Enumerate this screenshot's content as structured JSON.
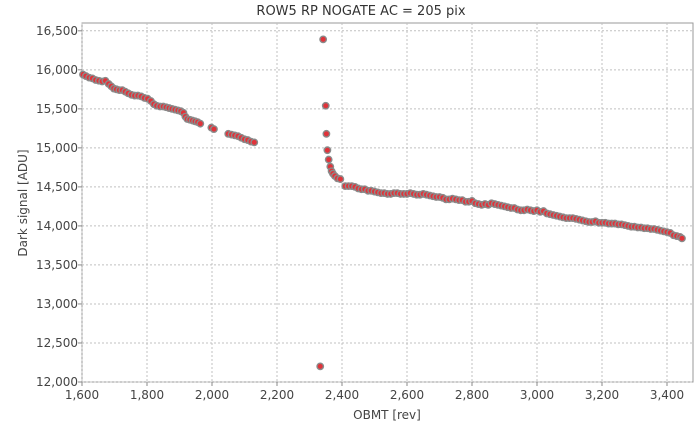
{
  "chart_data": {
    "type": "scatter",
    "title": "ROW5 RP NOGATE AC = 205 pix",
    "xlabel": "OBMT [rev]",
    "ylabel": "Dark signal [ADU]",
    "xlim": [
      1600,
      3480
    ],
    "ylim": [
      12000,
      16600
    ],
    "x_ticks": [
      1600,
      1800,
      2000,
      2200,
      2400,
      2600,
      2800,
      3000,
      3200,
      3400
    ],
    "x_tick_labels": [
      "1,600",
      "1,800",
      "2,000",
      "2,200",
      "2,400",
      "2,600",
      "2,800",
      "3,000",
      "3,200",
      "3,400"
    ],
    "y_ticks": [
      12000,
      12500,
      13000,
      13500,
      14000,
      14500,
      15000,
      15500,
      16000,
      16500
    ],
    "y_tick_labels": [
      "12,000",
      "12,500",
      "13,000",
      "13,500",
      "14,000",
      "14,500",
      "15,000",
      "15,500",
      "16,000",
      "16,500"
    ],
    "grid": true,
    "marker_fill": "#e0333a",
    "marker_edge": "#8a8a8a",
    "points": [
      [
        1603,
        15940
      ],
      [
        1612,
        15920
      ],
      [
        1622,
        15900
      ],
      [
        1632,
        15890
      ],
      [
        1642,
        15870
      ],
      [
        1652,
        15860
      ],
      [
        1662,
        15850
      ],
      [
        1672,
        15860
      ],
      [
        1682,
        15820
      ],
      [
        1690,
        15790
      ],
      [
        1698,
        15760
      ],
      [
        1706,
        15750
      ],
      [
        1715,
        15740
      ],
      [
        1724,
        15740
      ],
      [
        1733,
        15720
      ],
      [
        1742,
        15700
      ],
      [
        1752,
        15680
      ],
      [
        1762,
        15670
      ],
      [
        1772,
        15670
      ],
      [
        1782,
        15660
      ],
      [
        1792,
        15640
      ],
      [
        1802,
        15630
      ],
      [
        1812,
        15600
      ],
      [
        1821,
        15560
      ],
      [
        1830,
        15540
      ],
      [
        1840,
        15530
      ],
      [
        1850,
        15530
      ],
      [
        1859,
        15520
      ],
      [
        1868,
        15510
      ],
      [
        1877,
        15500
      ],
      [
        1886,
        15490
      ],
      [
        1895,
        15480
      ],
      [
        1904,
        15470
      ],
      [
        1912,
        15450
      ],
      [
        1918,
        15400
      ],
      [
        1924,
        15370
      ],
      [
        1932,
        15360
      ],
      [
        1940,
        15350
      ],
      [
        1948,
        15340
      ],
      [
        1956,
        15330
      ],
      [
        1964,
        15310
      ],
      [
        1998,
        15260
      ],
      [
        2006,
        15240
      ],
      [
        2050,
        15180
      ],
      [
        2060,
        15170
      ],
      [
        2070,
        15160
      ],
      [
        2080,
        15150
      ],
      [
        2090,
        15130
      ],
      [
        2100,
        15110
      ],
      [
        2110,
        15100
      ],
      [
        2120,
        15080
      ],
      [
        2130,
        15070
      ],
      [
        2333,
        12200
      ],
      [
        2342,
        16390
      ],
      [
        2350,
        15540
      ],
      [
        2352,
        15180
      ],
      [
        2355,
        14970
      ],
      [
        2359,
        14850
      ],
      [
        2364,
        14760
      ],
      [
        2368,
        14700
      ],
      [
        2372,
        14670
      ],
      [
        2378,
        14640
      ],
      [
        2386,
        14610
      ],
      [
        2395,
        14600
      ],
      [
        2410,
        14510
      ],
      [
        2420,
        14510
      ],
      [
        2430,
        14510
      ],
      [
        2440,
        14500
      ],
      [
        2450,
        14480
      ],
      [
        2460,
        14470
      ],
      [
        2470,
        14470
      ],
      [
        2480,
        14450
      ],
      [
        2490,
        14450
      ],
      [
        2500,
        14440
      ],
      [
        2510,
        14430
      ],
      [
        2520,
        14420
      ],
      [
        2530,
        14420
      ],
      [
        2540,
        14410
      ],
      [
        2550,
        14410
      ],
      [
        2560,
        14420
      ],
      [
        2570,
        14420
      ],
      [
        2580,
        14410
      ],
      [
        2590,
        14410
      ],
      [
        2600,
        14410
      ],
      [
        2610,
        14420
      ],
      [
        2620,
        14410
      ],
      [
        2630,
        14400
      ],
      [
        2640,
        14400
      ],
      [
        2650,
        14410
      ],
      [
        2660,
        14400
      ],
      [
        2670,
        14390
      ],
      [
        2680,
        14380
      ],
      [
        2690,
        14370
      ],
      [
        2700,
        14370
      ],
      [
        2710,
        14360
      ],
      [
        2720,
        14340
      ],
      [
        2730,
        14340
      ],
      [
        2740,
        14350
      ],
      [
        2750,
        14340
      ],
      [
        2760,
        14330
      ],
      [
        2770,
        14330
      ],
      [
        2780,
        14310
      ],
      [
        2790,
        14310
      ],
      [
        2800,
        14320
      ],
      [
        2810,
        14290
      ],
      [
        2820,
        14280
      ],
      [
        2830,
        14270
      ],
      [
        2840,
        14280
      ],
      [
        2850,
        14270
      ],
      [
        2860,
        14290
      ],
      [
        2870,
        14280
      ],
      [
        2880,
        14270
      ],
      [
        2890,
        14260
      ],
      [
        2900,
        14250
      ],
      [
        2910,
        14240
      ],
      [
        2920,
        14230
      ],
      [
        2930,
        14230
      ],
      [
        2940,
        14210
      ],
      [
        2950,
        14200
      ],
      [
        2960,
        14200
      ],
      [
        2970,
        14210
      ],
      [
        2980,
        14200
      ],
      [
        2990,
        14190
      ],
      [
        3000,
        14200
      ],
      [
        3010,
        14180
      ],
      [
        3020,
        14190
      ],
      [
        3030,
        14160
      ],
      [
        3040,
        14150
      ],
      [
        3050,
        14140
      ],
      [
        3060,
        14130
      ],
      [
        3070,
        14120
      ],
      [
        3080,
        14110
      ],
      [
        3090,
        14100
      ],
      [
        3100,
        14100
      ],
      [
        3110,
        14100
      ],
      [
        3120,
        14090
      ],
      [
        3130,
        14080
      ],
      [
        3140,
        14070
      ],
      [
        3150,
        14060
      ],
      [
        3160,
        14050
      ],
      [
        3170,
        14050
      ],
      [
        3180,
        14060
      ],
      [
        3190,
        14040
      ],
      [
        3200,
        14040
      ],
      [
        3210,
        14040
      ],
      [
        3220,
        14030
      ],
      [
        3230,
        14030
      ],
      [
        3240,
        14030
      ],
      [
        3250,
        14020
      ],
      [
        3260,
        14020
      ],
      [
        3270,
        14010
      ],
      [
        3280,
        14000
      ],
      [
        3290,
        13990
      ],
      [
        3300,
        13990
      ],
      [
        3310,
        13980
      ],
      [
        3320,
        13980
      ],
      [
        3330,
        13970
      ],
      [
        3340,
        13970
      ],
      [
        3350,
        13960
      ],
      [
        3360,
        13960
      ],
      [
        3370,
        13950
      ],
      [
        3380,
        13940
      ],
      [
        3390,
        13930
      ],
      [
        3400,
        13920
      ],
      [
        3410,
        13910
      ],
      [
        3420,
        13880
      ],
      [
        3430,
        13870
      ],
      [
        3440,
        13860
      ],
      [
        3446,
        13840
      ]
    ]
  }
}
